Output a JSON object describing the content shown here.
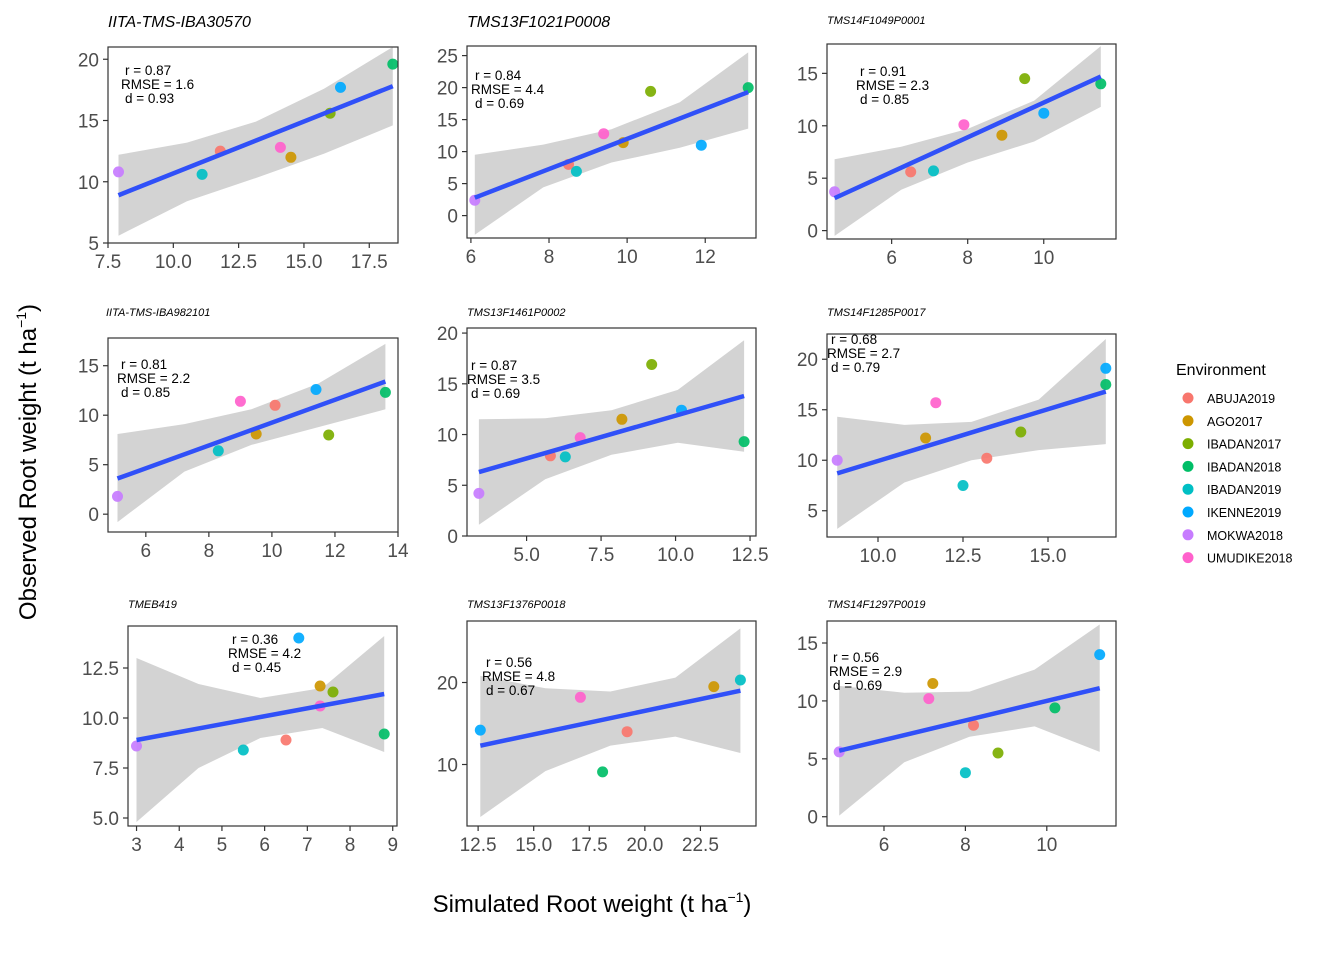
{
  "environments": [
    {
      "name": "ABUJA2019",
      "color": "#F8766D"
    },
    {
      "name": "AGO2017",
      "color": "#CD9600"
    },
    {
      "name": "IBADAN2017",
      "color": "#7CAE00"
    },
    {
      "name": "IBADAN2018",
      "color": "#00BE67"
    },
    {
      "name": "IBADAN2019",
      "color": "#00BFC4"
    },
    {
      "name": "IKENNE2019",
      "color": "#00A9FF"
    },
    {
      "name": "MOKWA2018",
      "color": "#C77CFF"
    },
    {
      "name": "UMUDIKE2018",
      "color": "#FF61CC"
    }
  ],
  "chart_data": {
    "type": "scatter",
    "xlabel": "Simulated Root weight",
    "ylabel": "Observed Root weight",
    "unit": "t ha",
    "unit_exponent": "−1",
    "legend": {
      "title": "Environment",
      "position": "right"
    },
    "regression_color": "#3050F8",
    "ribbon_color": "#D3D3D3",
    "panels": [
      {
        "title": "IITA-TMS-IBA30570",
        "stats": [
          "r = 0.87",
          "RMSE = 1.6",
          "d = 0.93"
        ],
        "xlim": [
          7.5,
          18.6
        ],
        "ylim": [
          5,
          21
        ],
        "xticks": [
          7.5,
          10,
          12.5,
          15,
          17.5
        ],
        "xtick_labels": [
          "7.5",
          "10.0",
          "12.5",
          "15.0",
          "17.5"
        ],
        "yticks": [
          5,
          10,
          15,
          20
        ],
        "ytick_labels": [
          "5",
          "10",
          "15",
          "20"
        ],
        "points": [
          {
            "env": "MOKWA2018",
            "x": 7.9,
            "y": 10.8
          },
          {
            "env": "ABUJA2019",
            "x": 11.8,
            "y": 12.5
          },
          {
            "env": "IBADAN2019",
            "x": 11.1,
            "y": 10.6
          },
          {
            "env": "UMUDIKE2018",
            "x": 14.1,
            "y": 12.8
          },
          {
            "env": "AGO2017",
            "x": 14.5,
            "y": 12.0
          },
          {
            "env": "IBADAN2017",
            "x": 16.0,
            "y": 15.6
          },
          {
            "env": "IKENNE2019",
            "x": 16.4,
            "y": 17.7
          },
          {
            "env": "IBADAN2018",
            "x": 18.4,
            "y": 19.6
          }
        ],
        "fit": {
          "x": [
            7.9,
            18.4
          ],
          "y": [
            8.9,
            17.8
          ]
        },
        "ribbon": {
          "upper": [
            12.2,
            13.2,
            14.9,
            17.6,
            21.0
          ],
          "lower": [
            5.6,
            8.4,
            10.3,
            12.3,
            14.6
          ]
        }
      },
      {
        "title": "TMS13F1021P0008",
        "stats": [
          "r = 0.84",
          "RMSE = 4.4",
          "d = 0.69"
        ],
        "xlim": [
          5.9,
          13.3
        ],
        "ylim": [
          -3.5,
          26.5
        ],
        "xticks": [
          6,
          8,
          10,
          12
        ],
        "xtick_labels": [
          "6",
          "8",
          "10",
          "12"
        ],
        "yticks": [
          0,
          5,
          10,
          15,
          20,
          25
        ],
        "ytick_labels": [
          "0",
          "5",
          "10",
          "15",
          "20",
          "25"
        ],
        "points": [
          {
            "env": "MOKWA2018",
            "x": 6.1,
            "y": 2.4
          },
          {
            "env": "ABUJA2019",
            "x": 8.5,
            "y": 8.0
          },
          {
            "env": "IBADAN2019",
            "x": 8.7,
            "y": 6.9
          },
          {
            "env": "UMUDIKE2018",
            "x": 9.4,
            "y": 12.8
          },
          {
            "env": "AGO2017",
            "x": 9.9,
            "y": 11.4
          },
          {
            "env": "IBADAN2017",
            "x": 10.6,
            "y": 19.4
          },
          {
            "env": "IKENNE2019",
            "x": 11.9,
            "y": 11.0
          },
          {
            "env": "IBADAN2018",
            "x": 13.1,
            "y": 20.0
          }
        ],
        "fit": {
          "x": [
            6.1,
            13.1
          ],
          "y": [
            2.8,
            19.3
          ]
        },
        "ribbon": {
          "upper": [
            9.5,
            11.1,
            13.5,
            17.7,
            25.5
          ],
          "lower": [
            -3.0,
            4.4,
            8.3,
            10.6,
            13.6
          ]
        }
      },
      {
        "title": "TMS14F1049P0001",
        "stats": [
          "r = 0.91",
          "RMSE = 2.3",
          "d = 0.85"
        ],
        "xlim": [
          4.3,
          11.9
        ],
        "ylim": [
          -0.8,
          17.8
        ],
        "xticks": [
          6,
          8,
          10
        ],
        "xtick_labels": [
          "6",
          "8",
          "10"
        ],
        "yticks": [
          0,
          5,
          10,
          15
        ],
        "ytick_labels": [
          "0",
          "5",
          "10",
          "15"
        ],
        "points": [
          {
            "env": "MOKWA2018",
            "x": 4.5,
            "y": 3.7
          },
          {
            "env": "ABUJA2019",
            "x": 6.5,
            "y": 5.6
          },
          {
            "env": "IBADAN2019",
            "x": 7.1,
            "y": 5.7
          },
          {
            "env": "UMUDIKE2018",
            "x": 7.9,
            "y": 10.1
          },
          {
            "env": "AGO2017",
            "x": 8.9,
            "y": 9.1
          },
          {
            "env": "IBADAN2017",
            "x": 9.5,
            "y": 14.5
          },
          {
            "env": "IKENNE2019",
            "x": 10.0,
            "y": 11.2
          },
          {
            "env": "IBADAN2018",
            "x": 11.5,
            "y": 14.0
          }
        ],
        "fit": {
          "x": [
            4.5,
            11.5
          ],
          "y": [
            3.1,
            14.7
          ]
        },
        "ribbon": {
          "upper": [
            6.8,
            8.0,
            9.7,
            12.4,
            17.6
          ],
          "lower": [
            -0.5,
            3.9,
            6.5,
            8.5,
            11.8
          ]
        }
      },
      {
        "title": "IITA-TMS-IBA982101",
        "stats": [
          "r = 0.81",
          "RMSE = 2.2",
          "d = 0.85"
        ],
        "xlim": [
          4.8,
          14.0
        ],
        "ylim": [
          -1.8,
          17.8
        ],
        "xticks": [
          6,
          8,
          10,
          12,
          14
        ],
        "xtick_labels": [
          "6",
          "8",
          "10",
          "12",
          "14"
        ],
        "yticks": [
          0,
          5,
          10,
          15
        ],
        "ytick_labels": [
          "0",
          "5",
          "10",
          "15"
        ],
        "points": [
          {
            "env": "MOKWA2018",
            "x": 5.1,
            "y": 1.8
          },
          {
            "env": "IBADAN2019",
            "x": 8.3,
            "y": 6.4
          },
          {
            "env": "AGO2017",
            "x": 9.5,
            "y": 8.1
          },
          {
            "env": "UMUDIKE2018",
            "x": 9.0,
            "y": 11.4
          },
          {
            "env": "ABUJA2019",
            "x": 10.1,
            "y": 11.0
          },
          {
            "env": "IKENNE2019",
            "x": 11.4,
            "y": 12.6
          },
          {
            "env": "IBADAN2017",
            "x": 11.8,
            "y": 8.0
          },
          {
            "env": "IBADAN2018",
            "x": 13.6,
            "y": 12.3
          }
        ],
        "fit": {
          "x": [
            5.1,
            13.6
          ],
          "y": [
            3.6,
            13.4
          ]
        },
        "ribbon": {
          "upper": [
            8.1,
            9.1,
            10.6,
            13.2,
            17.2
          ],
          "lower": [
            -0.8,
            4.3,
            7.0,
            8.8,
            10.6
          ]
        }
      },
      {
        "title": "TMS13F1461P0002",
        "stats": [
          "r = 0.87",
          "RMSE = 3.5",
          "d = 0.69"
        ],
        "xlim": [
          3.0,
          12.7
        ],
        "ylim": [
          0,
          20.5
        ],
        "xticks": [
          5.0,
          7.5,
          10.0,
          12.5
        ],
        "xtick_labels": [
          "5.0",
          "7.5",
          "10.0",
          "12.5"
        ],
        "yticks": [
          0,
          5,
          10,
          15,
          20
        ],
        "ytick_labels": [
          "0",
          "5",
          "10",
          "15",
          "20"
        ],
        "points": [
          {
            "env": "MOKWA2018",
            "x": 3.4,
            "y": 4.2
          },
          {
            "env": "ABUJA2019",
            "x": 5.8,
            "y": 7.9
          },
          {
            "env": "IBADAN2019",
            "x": 6.3,
            "y": 7.8
          },
          {
            "env": "UMUDIKE2018",
            "x": 6.8,
            "y": 9.7
          },
          {
            "env": "AGO2017",
            "x": 8.2,
            "y": 11.5
          },
          {
            "env": "IBADAN2017",
            "x": 9.2,
            "y": 16.9
          },
          {
            "env": "IKENNE2019",
            "x": 10.2,
            "y": 12.4
          },
          {
            "env": "IBADAN2018",
            "x": 12.3,
            "y": 9.3
          }
        ],
        "fit": {
          "x": [
            3.4,
            12.3
          ],
          "y": [
            6.3,
            13.8
          ]
        },
        "ribbon": {
          "upper": [
            11.5,
            11.6,
            12.4,
            14.4,
            19.3
          ],
          "lower": [
            1.1,
            5.6,
            8.0,
            9.2,
            8.3
          ]
        }
      },
      {
        "title": "TMS14F1285P0017",
        "stats": [
          "r = 0.68",
          "RMSE = 2.7",
          "d = 0.79"
        ],
        "xlim": [
          8.5,
          17.0
        ],
        "ylim": [
          2.4,
          22.5
        ],
        "xticks": [
          10,
          12.5,
          15
        ],
        "xtick_labels": [
          "10.0",
          "12.5",
          "15.0"
        ],
        "yticks": [
          5,
          10,
          15,
          20
        ],
        "ytick_labels": [
          "5",
          "10",
          "15",
          "20"
        ],
        "points": [
          {
            "env": "MOKWA2018",
            "x": 8.8,
            "y": 10.0
          },
          {
            "env": "AGO2017",
            "x": 11.4,
            "y": 12.2
          },
          {
            "env": "UMUDIKE2018",
            "x": 11.7,
            "y": 15.7
          },
          {
            "env": "IBADAN2019",
            "x": 12.5,
            "y": 7.5
          },
          {
            "env": "ABUJA2019",
            "x": 13.2,
            "y": 10.2
          },
          {
            "env": "IBADAN2017",
            "x": 14.2,
            "y": 12.8
          },
          {
            "env": "IBADAN2018",
            "x": 16.7,
            "y": 17.5
          },
          {
            "env": "IKENNE2019",
            "x": 16.7,
            "y": 19.1
          }
        ],
        "fit": {
          "x": [
            8.8,
            16.7
          ],
          "y": [
            8.7,
            16.8
          ]
        },
        "ribbon": {
          "upper": [
            14.3,
            13.5,
            13.8,
            16.0,
            22.0
          ],
          "lower": [
            3.2,
            7.8,
            10.0,
            11.0,
            11.6
          ]
        }
      },
      {
        "title": "TMEB419",
        "stats": [
          "r = 0.36",
          "RMSE = 4.2",
          "d = 0.45"
        ],
        "xlim": [
          2.8,
          9.1
        ],
        "ylim": [
          4.6,
          14.6
        ],
        "xticks": [
          3,
          4,
          5,
          6,
          7,
          8,
          9
        ],
        "xtick_labels": [
          "3",
          "4",
          "5",
          "6",
          "7",
          "8",
          "9"
        ],
        "yticks": [
          5,
          7.5,
          10,
          12.5
        ],
        "ytick_labels": [
          "5.0",
          "7.5",
          "10.0",
          "12.5"
        ],
        "points": [
          {
            "env": "MOKWA2018",
            "x": 3.0,
            "y": 8.6
          },
          {
            "env": "IBADAN2019",
            "x": 5.5,
            "y": 8.4
          },
          {
            "env": "ABUJA2019",
            "x": 6.5,
            "y": 8.9
          },
          {
            "env": "IKENNE2019",
            "x": 6.8,
            "y": 14.0
          },
          {
            "env": "UMUDIKE2018",
            "x": 7.3,
            "y": 10.6
          },
          {
            "env": "AGO2017",
            "x": 7.3,
            "y": 11.6
          },
          {
            "env": "IBADAN2017",
            "x": 7.6,
            "y": 11.3
          },
          {
            "env": "IBADAN2018",
            "x": 8.8,
            "y": 9.2
          }
        ],
        "fit": {
          "x": [
            3.0,
            8.8
          ],
          "y": [
            8.9,
            11.2
          ]
        },
        "ribbon": {
          "upper": [
            13.0,
            11.7,
            11.0,
            11.5,
            14.1
          ],
          "lower": [
            4.8,
            7.5,
            9.0,
            9.5,
            8.3
          ]
        }
      },
      {
        "title": "TMS13F1376P0018",
        "stats": [
          "r = 0.56",
          "RMSE = 4.8",
          "d = 0.67"
        ],
        "xlim": [
          12.0,
          25.0
        ],
        "ylim": [
          2.5,
          27.5
        ],
        "xticks": [
          12.5,
          15,
          17.5,
          20,
          22.5
        ],
        "xtick_labels": [
          "12.5",
          "15.0",
          "17.5",
          "20.0",
          "22.5"
        ],
        "yticks": [
          10,
          20
        ],
        "ytick_labels": [
          "10",
          "20"
        ],
        "points": [
          {
            "env": "IKENNE2019",
            "x": 12.6,
            "y": 14.2
          },
          {
            "env": "UMUDIKE2018",
            "x": 17.1,
            "y": 18.2
          },
          {
            "env": "IBADAN2018",
            "x": 18.1,
            "y": 9.1
          },
          {
            "env": "ABUJA2019",
            "x": 19.2,
            "y": 14.0
          },
          {
            "env": "AGO2017",
            "x": 23.1,
            "y": 19.5
          },
          {
            "env": "IBADAN2019",
            "x": 24.3,
            "y": 20.3
          }
        ],
        "fit": {
          "x": [
            12.6,
            24.3
          ],
          "y": [
            12.3,
            19.0
          ]
        },
        "ribbon": {
          "upper": [
            20.8,
            19.3,
            18.9,
            20.6,
            26.6
          ],
          "lower": [
            3.6,
            9.2,
            12.3,
            13.4,
            11.4
          ]
        }
      },
      {
        "title": "TMS14F1297P0019",
        "stats": [
          "r = 0.56",
          "RMSE = 2.9",
          "d = 0.69"
        ],
        "xlim": [
          4.6,
          11.7
        ],
        "ylim": [
          -0.8,
          16.9
        ],
        "xticks": [
          6,
          8,
          10
        ],
        "xtick_labels": [
          "6",
          "8",
          "10"
        ],
        "yticks": [
          0,
          5,
          10,
          15
        ],
        "ytick_labels": [
          "0",
          "5",
          "10",
          "15"
        ],
        "points": [
          {
            "env": "MOKWA2018",
            "x": 4.9,
            "y": 5.6
          },
          {
            "env": "UMUDIKE2018",
            "x": 7.1,
            "y": 10.2
          },
          {
            "env": "AGO2017",
            "x": 7.2,
            "y": 11.5
          },
          {
            "env": "IBADAN2019",
            "x": 8.0,
            "y": 3.8
          },
          {
            "env": "ABUJA2019",
            "x": 8.2,
            "y": 7.9
          },
          {
            "env": "IBADAN2017",
            "x": 8.8,
            "y": 5.5
          },
          {
            "env": "IBADAN2018",
            "x": 10.2,
            "y": 9.4
          },
          {
            "env": "IKENNE2019",
            "x": 11.3,
            "y": 14.0
          }
        ],
        "fit": {
          "x": [
            4.9,
            11.3
          ],
          "y": [
            5.7,
            11.1
          ]
        },
        "ribbon": {
          "upper": [
            11.3,
            10.7,
            10.8,
            12.7,
            16.6
          ],
          "lower": [
            0.1,
            4.7,
            6.9,
            7.8,
            5.6
          ]
        }
      }
    ]
  }
}
